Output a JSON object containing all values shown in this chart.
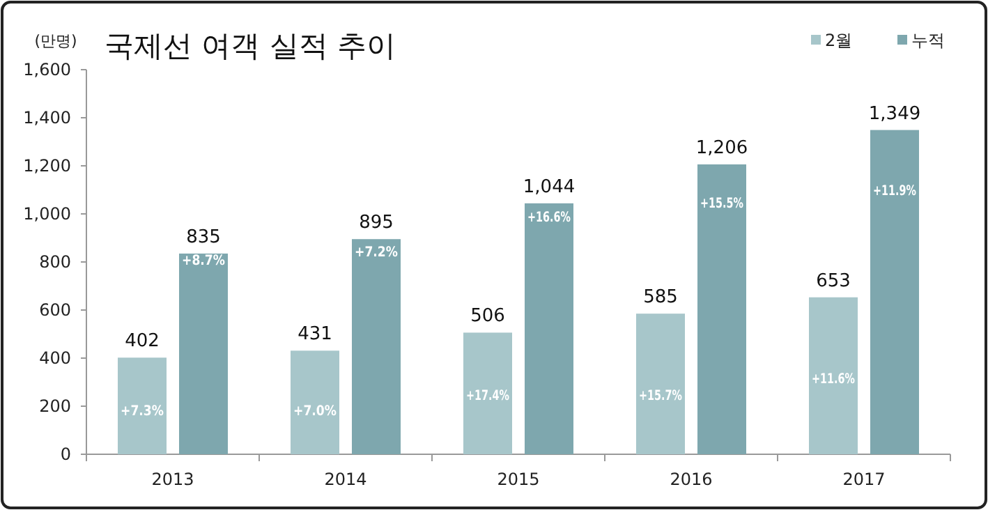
{
  "chart_data": {
    "type": "bar",
    "title": "국제선 여객 실적 추이",
    "ylabel": "(만명)",
    "categories": [
      "2013",
      "2014",
      "2015",
      "2016",
      "2017"
    ],
    "series": [
      {
        "name": "2월",
        "color": "#a7c6ca",
        "values": [
          402,
          431,
          506,
          585,
          653
        ],
        "value_labels": [
          "402",
          "431",
          "506",
          "585",
          "653"
        ]
      },
      {
        "name": "누적",
        "color": "#7ea7ae",
        "values": [
          835,
          895,
          1044,
          1206,
          1349
        ],
        "value_labels": [
          "835",
          "895",
          "1,044",
          "1,206",
          "1,349"
        ]
      }
    ],
    "annotations": [
      {
        "text": "+7.3%",
        "x": "2013",
        "y": 186
      },
      {
        "text": "+8.7%",
        "x": "2013",
        "y": 811
      },
      {
        "text": "+7.0%",
        "x": "2014",
        "y": 186
      },
      {
        "text": "+7.2%",
        "x": "2014",
        "y": 846
      },
      {
        "text": "+17.4%",
        "x": "2015",
        "y": 249
      },
      {
        "text": "+16.6%",
        "x": "2015",
        "y": 991
      },
      {
        "text": "+15.7%",
        "x": "2016",
        "y": 249
      },
      {
        "text": "+15.5%",
        "x": "2016",
        "y": 1049
      },
      {
        "text": "+11.6%",
        "x": "2017",
        "y": 319
      },
      {
        "text": "+11.9%",
        "x": "2017",
        "y": 1101
      }
    ],
    "ylim": [
      0,
      1600
    ],
    "yticks": [
      0,
      200,
      400,
      600,
      800,
      {
        "value": 1000,
        "label": "1,000"
      },
      {
        "value": 1200,
        "label": "1,200"
      },
      {
        "value": 1400,
        "label": "1,400"
      },
      {
        "value": 1600,
        "label": "1,600"
      }
    ],
    "grid": false,
    "legend": "top right"
  }
}
